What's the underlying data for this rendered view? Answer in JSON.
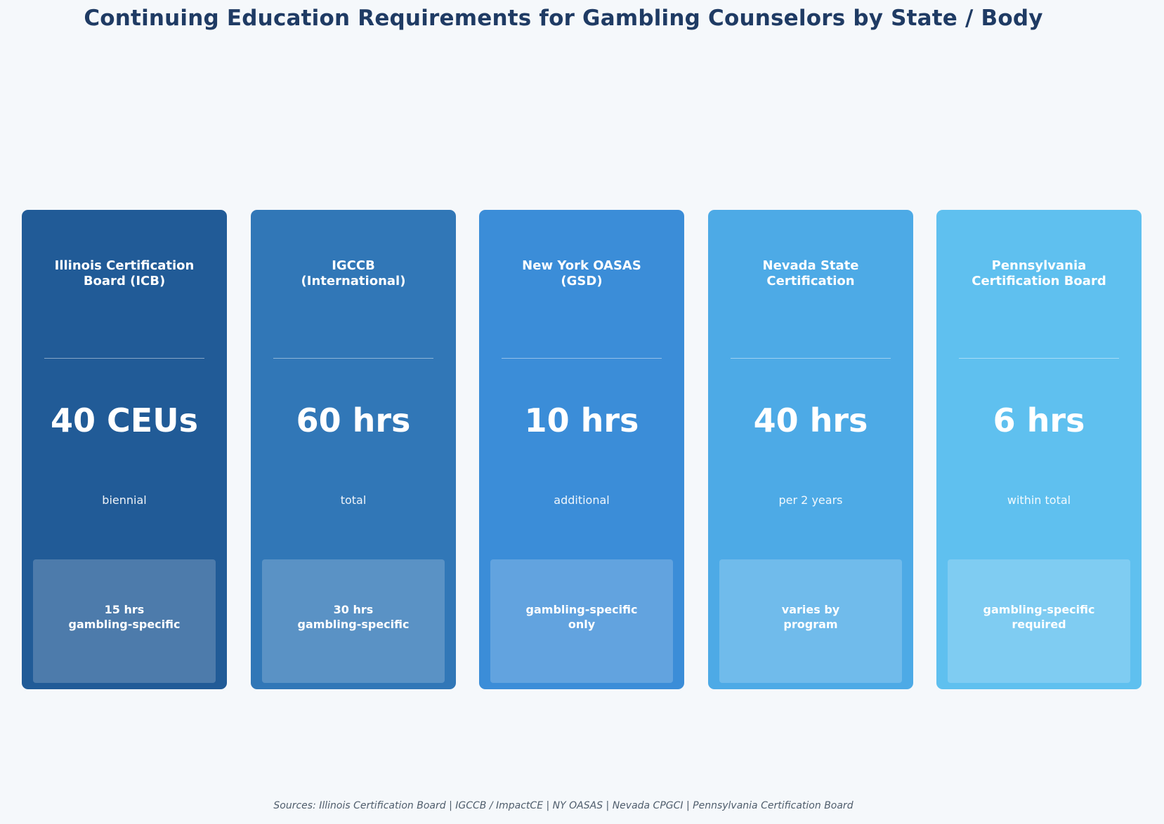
{
  "title": "Continuing Education Requirements for Gambling Counselors by State / Body",
  "cards": [
    {
      "name": "Illinois Certification\nBoard (ICB)",
      "value": "40 CEUs",
      "qualifier": "biennial",
      "note": "15 hrs\ngambling-specific",
      "color": "#215b97"
    },
    {
      "name": "IGCCB\n(International)",
      "value": "60 hrs",
      "qualifier": "total",
      "note": "30 hrs\ngambling-specific",
      "color": "#3177b7"
    },
    {
      "name": "New York OASAS\n(GSD)",
      "value": "10 hrs",
      "qualifier": "additional",
      "note": "gambling-specific\nonly",
      "color": "#3b8dd8"
    },
    {
      "name": "Nevada State\nCertification",
      "value": "40 hrs",
      "qualifier": "per 2 years",
      "note": "varies by\nprogram",
      "color": "#4daae6"
    },
    {
      "name": "Pennsylvania\nCertification Board",
      "value": "6 hrs",
      "qualifier": "within total",
      "note": "gambling-specific\nrequired",
      "color": "#5fc0ef"
    }
  ],
  "sources": "Sources: Illinois Certification Board | IGCCB / ImpactCE | NY OASAS | Nevada CPGCI | Pennsylvania Certification Board"
}
